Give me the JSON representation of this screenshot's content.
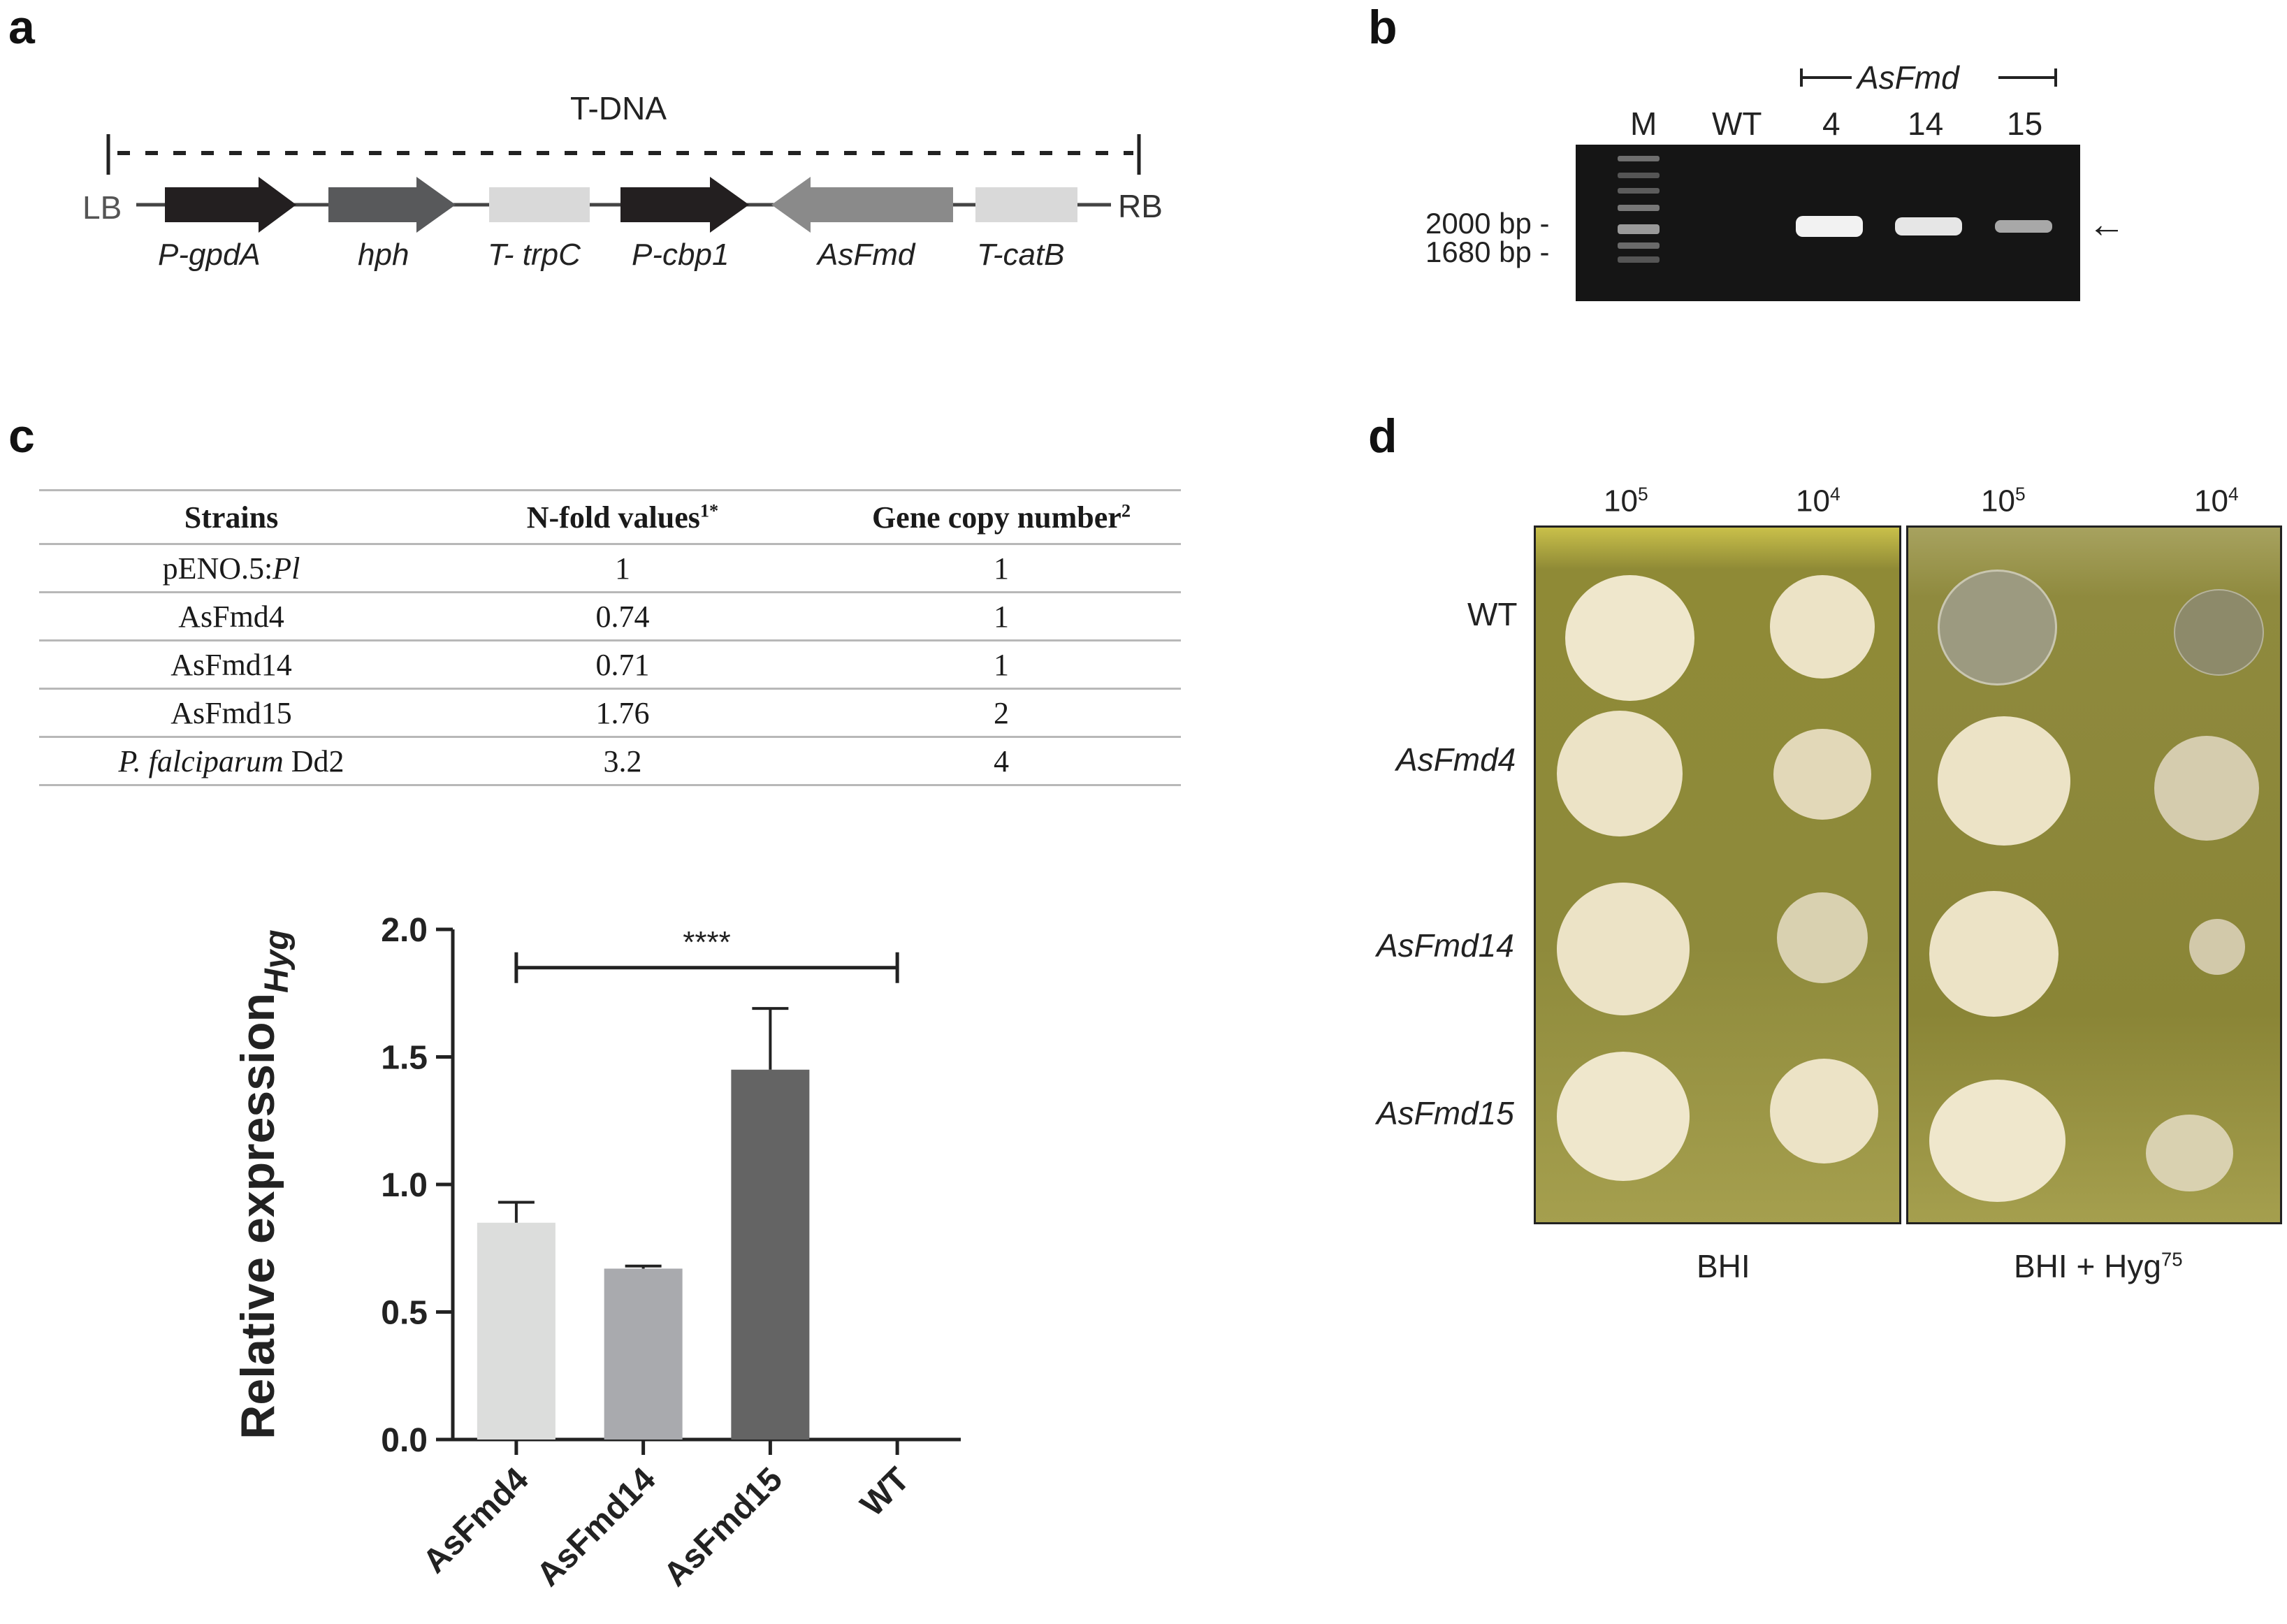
{
  "panels": {
    "a": "a",
    "b": "b",
    "c": "c",
    "d": "d"
  },
  "construct": {
    "title": "T-DNA",
    "left_border": "LB",
    "right_border": "RB",
    "elements": [
      {
        "label": "P-gpdA",
        "color": "#231f20",
        "direction": "right"
      },
      {
        "label": "hph",
        "color": "#58595b",
        "direction": "right"
      },
      {
        "label": "T- trpC",
        "color": "#d9d9d9",
        "direction": "none"
      },
      {
        "label": "P-cbp1",
        "color": "#231f20",
        "direction": "right"
      },
      {
        "label": "AsFmd",
        "color": "#8a8a8a",
        "direction": "left"
      },
      {
        "label": "T-catB",
        "color": "#d9d9d9",
        "direction": "none"
      }
    ]
  },
  "gel": {
    "group_label": "AsFmd",
    "lanes": [
      "M",
      "WT",
      "4",
      "14",
      "15"
    ],
    "size_markers": [
      "2000 bp -",
      "1680 bp -"
    ],
    "arrow": "←"
  },
  "table": {
    "headers": [
      "Strains",
      "N-fold values",
      "Gene copy number"
    ],
    "header_sups": [
      "",
      "1*",
      "2"
    ],
    "rows": [
      {
        "strain_a": "pENO.5:",
        "strain_b": "Pl",
        "nfold": "1",
        "copies": "1"
      },
      {
        "strain_a": "AsFmd4",
        "strain_b": "",
        "nfold": "0.74",
        "copies": "1"
      },
      {
        "strain_a": "AsFmd14",
        "strain_b": "",
        "nfold": "0.71",
        "copies": "1"
      },
      {
        "strain_a": "AsFmd15",
        "strain_b": "",
        "nfold": "1.76",
        "copies": "2"
      },
      {
        "strain_a": "P. falciparum",
        "strain_b": " Dd2",
        "nfold": "3.2",
        "copies": "4"
      }
    ]
  },
  "chart_data": {
    "type": "bar",
    "categories": [
      "AsFmd4",
      "AsFmd14",
      "AsFmd15",
      "WT"
    ],
    "values": [
      0.85,
      0.67,
      1.45,
      0.0
    ],
    "errors": [
      0.08,
      0.01,
      0.24,
      0.0
    ],
    "colors": [
      "#dcdddc",
      "#a9aaae",
      "#646464",
      "#646464"
    ],
    "ylabel": "Relative expression",
    "ylabel_sub": "Hyg",
    "yticks": [
      "0.0",
      "0.5",
      "1.0",
      "1.5",
      "2.0"
    ],
    "ylim": [
      0,
      2.0
    ],
    "significance": "****",
    "significance_between": [
      "AsFmd4",
      "WT"
    ]
  },
  "plates": {
    "dilutions": [
      "10",
      "10",
      "10",
      "10"
    ],
    "dilution_exps": [
      "5",
      "4",
      "5",
      "4"
    ],
    "strains": [
      "WT",
      "AsFmd4",
      "AsFmd14",
      "AsFmd15"
    ],
    "strain_italic": [
      false,
      true,
      true,
      true
    ],
    "media": [
      "BHI",
      "BHI + Hyg"
    ],
    "media_sup": "75"
  }
}
